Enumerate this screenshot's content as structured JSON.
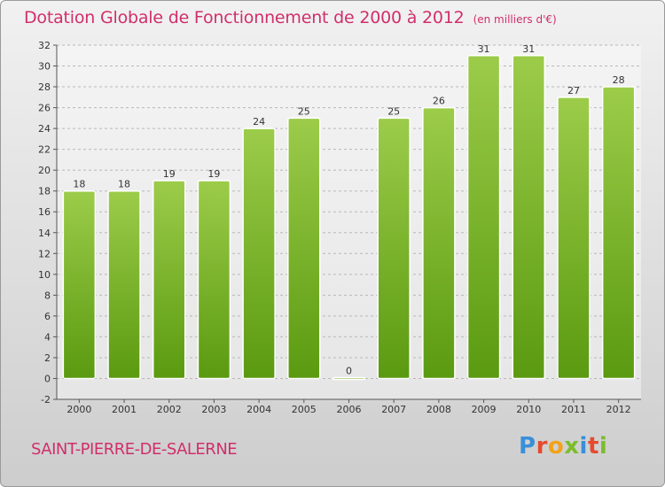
{
  "title": "Dotation Globale de Fonctionnement de 2000 à 2012",
  "subtitle": "(en milliers d'€)",
  "commune": "SAINT-PIERRE-DE-SALERNE",
  "logo": {
    "text": "Proxiti",
    "letter_colors": [
      "#3a8fd8",
      "#e64a2e",
      "#f2a31a",
      "#7bbd2a",
      "#3a8fd8",
      "#e64a2e",
      "#7bbd2a"
    ]
  },
  "colors": {
    "title": "#d02f6a",
    "bar_light": "#9ccc4a",
    "bar_dark": "#5a9a10",
    "grid": "#b8b8b8"
  },
  "chart_data": {
    "type": "bar",
    "categories": [
      "2000",
      "2001",
      "2002",
      "2003",
      "2004",
      "2005",
      "2006",
      "2007",
      "2008",
      "2009",
      "2010",
      "2011",
      "2012"
    ],
    "values": [
      18,
      18,
      19,
      19,
      24,
      25,
      0,
      25,
      26,
      31,
      31,
      27,
      28
    ],
    "ylim": [
      -2,
      32
    ],
    "yticks": [
      -2,
      0,
      2,
      4,
      6,
      8,
      10,
      12,
      14,
      16,
      18,
      20,
      22,
      24,
      26,
      28,
      30,
      32
    ],
    "grid": true
  }
}
